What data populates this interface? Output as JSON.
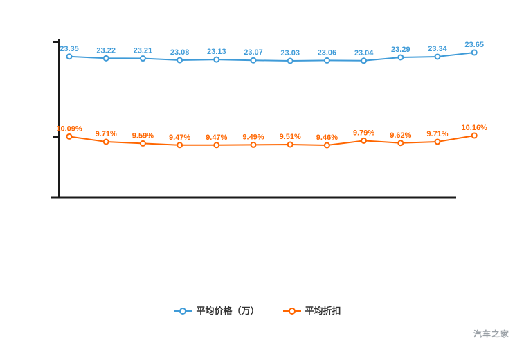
{
  "page": {
    "watermark": "汽车之家"
  },
  "legend": {
    "items": [
      {
        "label": "平均价格（万）",
        "color": "#3f9bd8"
      },
      {
        "label": "平均折扣",
        "color": "#ff6600"
      }
    ]
  },
  "chart_data": {
    "type": "line",
    "title": "",
    "categories": [],
    "x_tick_labels_visible": false,
    "y_tick_labels_visible": false,
    "grid": false,
    "legend_position": "bottom",
    "series": [
      {
        "name": "平均价格（万）",
        "color": "#3f9bd8",
        "label_suffix": "",
        "values": [
          23.35,
          23.22,
          23.21,
          23.08,
          23.13,
          23.07,
          23.03,
          23.06,
          23.04,
          23.29,
          23.34,
          23.65
        ]
      },
      {
        "name": "平均折扣",
        "color": "#ff6600",
        "label_suffix": "%",
        "values": [
          10.09,
          9.71,
          9.59,
          9.47,
          9.47,
          9.49,
          9.51,
          9.46,
          9.79,
          9.62,
          9.71,
          10.16
        ]
      }
    ]
  }
}
